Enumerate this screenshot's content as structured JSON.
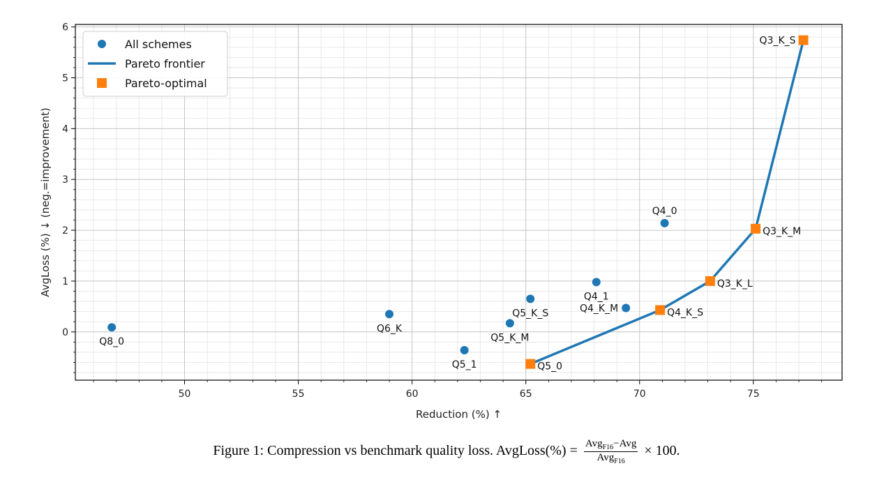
{
  "chart_data": {
    "type": "scatter",
    "xlabel": "Reduction (%)  ↑",
    "ylabel": "AvgLoss (%)  ↓  (neg.=improvement)",
    "xlim": [
      45.2,
      78.9
    ],
    "ylim": [
      -0.95,
      6.05
    ],
    "xticks": [
      50,
      55,
      60,
      65,
      70,
      75
    ],
    "yticks": [
      0,
      1,
      2,
      3,
      4,
      5,
      6
    ],
    "grid": true,
    "minor_grid": true,
    "legend_position": "top-left",
    "legend": [
      {
        "label": "All schemes",
        "marker": "circle"
      },
      {
        "label": "Pareto frontier",
        "marker": "line"
      },
      {
        "label": "Pareto-optimal",
        "marker": "square"
      }
    ],
    "colors": {
      "schemes": "#1f77b4",
      "frontier": "#1f77b4",
      "optimal": "#ff7f0e"
    },
    "points": [
      {
        "name": "Q8_0",
        "x": 46.8,
        "y": 0.09,
        "label_pos": "below"
      },
      {
        "name": "Q6_K",
        "x": 59.0,
        "y": 0.35,
        "label_pos": "below"
      },
      {
        "name": "Q5_1",
        "x": 62.3,
        "y": -0.36,
        "label_pos": "below"
      },
      {
        "name": "Q5_K_M",
        "x": 64.3,
        "y": 0.17,
        "label_pos": "below"
      },
      {
        "name": "Q5_K_S",
        "x": 65.2,
        "y": 0.65,
        "label_pos": "below"
      },
      {
        "name": "Q4_1",
        "x": 68.1,
        "y": 0.98,
        "label_pos": "below"
      },
      {
        "name": "Q4_K_M",
        "x": 69.4,
        "y": 0.47,
        "label_pos": "left"
      },
      {
        "name": "Q4_0",
        "x": 71.1,
        "y": 2.14,
        "label_pos": "above"
      },
      {
        "name": "Q5_0",
        "x": 65.2,
        "y": -0.63,
        "label_pos": "right"
      },
      {
        "name": "Q4_K_S",
        "x": 70.9,
        "y": 0.43,
        "label_pos": "right"
      },
      {
        "name": "Q3_K_L",
        "x": 73.1,
        "y": 1.0,
        "label_pos": "right"
      },
      {
        "name": "Q3_K_M",
        "x": 75.1,
        "y": 2.03,
        "label_pos": "right"
      },
      {
        "name": "Q3_K_S",
        "x": 77.2,
        "y": 5.74,
        "label_pos": "left"
      }
    ],
    "frontier": [
      {
        "x": 65.2,
        "y": -0.63
      },
      {
        "x": 70.9,
        "y": 0.43
      },
      {
        "x": 73.1,
        "y": 1.0
      },
      {
        "x": 75.1,
        "y": 2.03
      },
      {
        "x": 77.2,
        "y": 5.74
      }
    ]
  },
  "caption": {
    "prefix": "Figure 1: Compression vs benchmark quality loss. AvgLoss(%) = ",
    "numerator": "Avg",
    "numerator_sub": "F16",
    "numerator_rest": "−Avg",
    "denominator": "Avg",
    "denominator_sub": "F16",
    "suffix": " × 100."
  }
}
